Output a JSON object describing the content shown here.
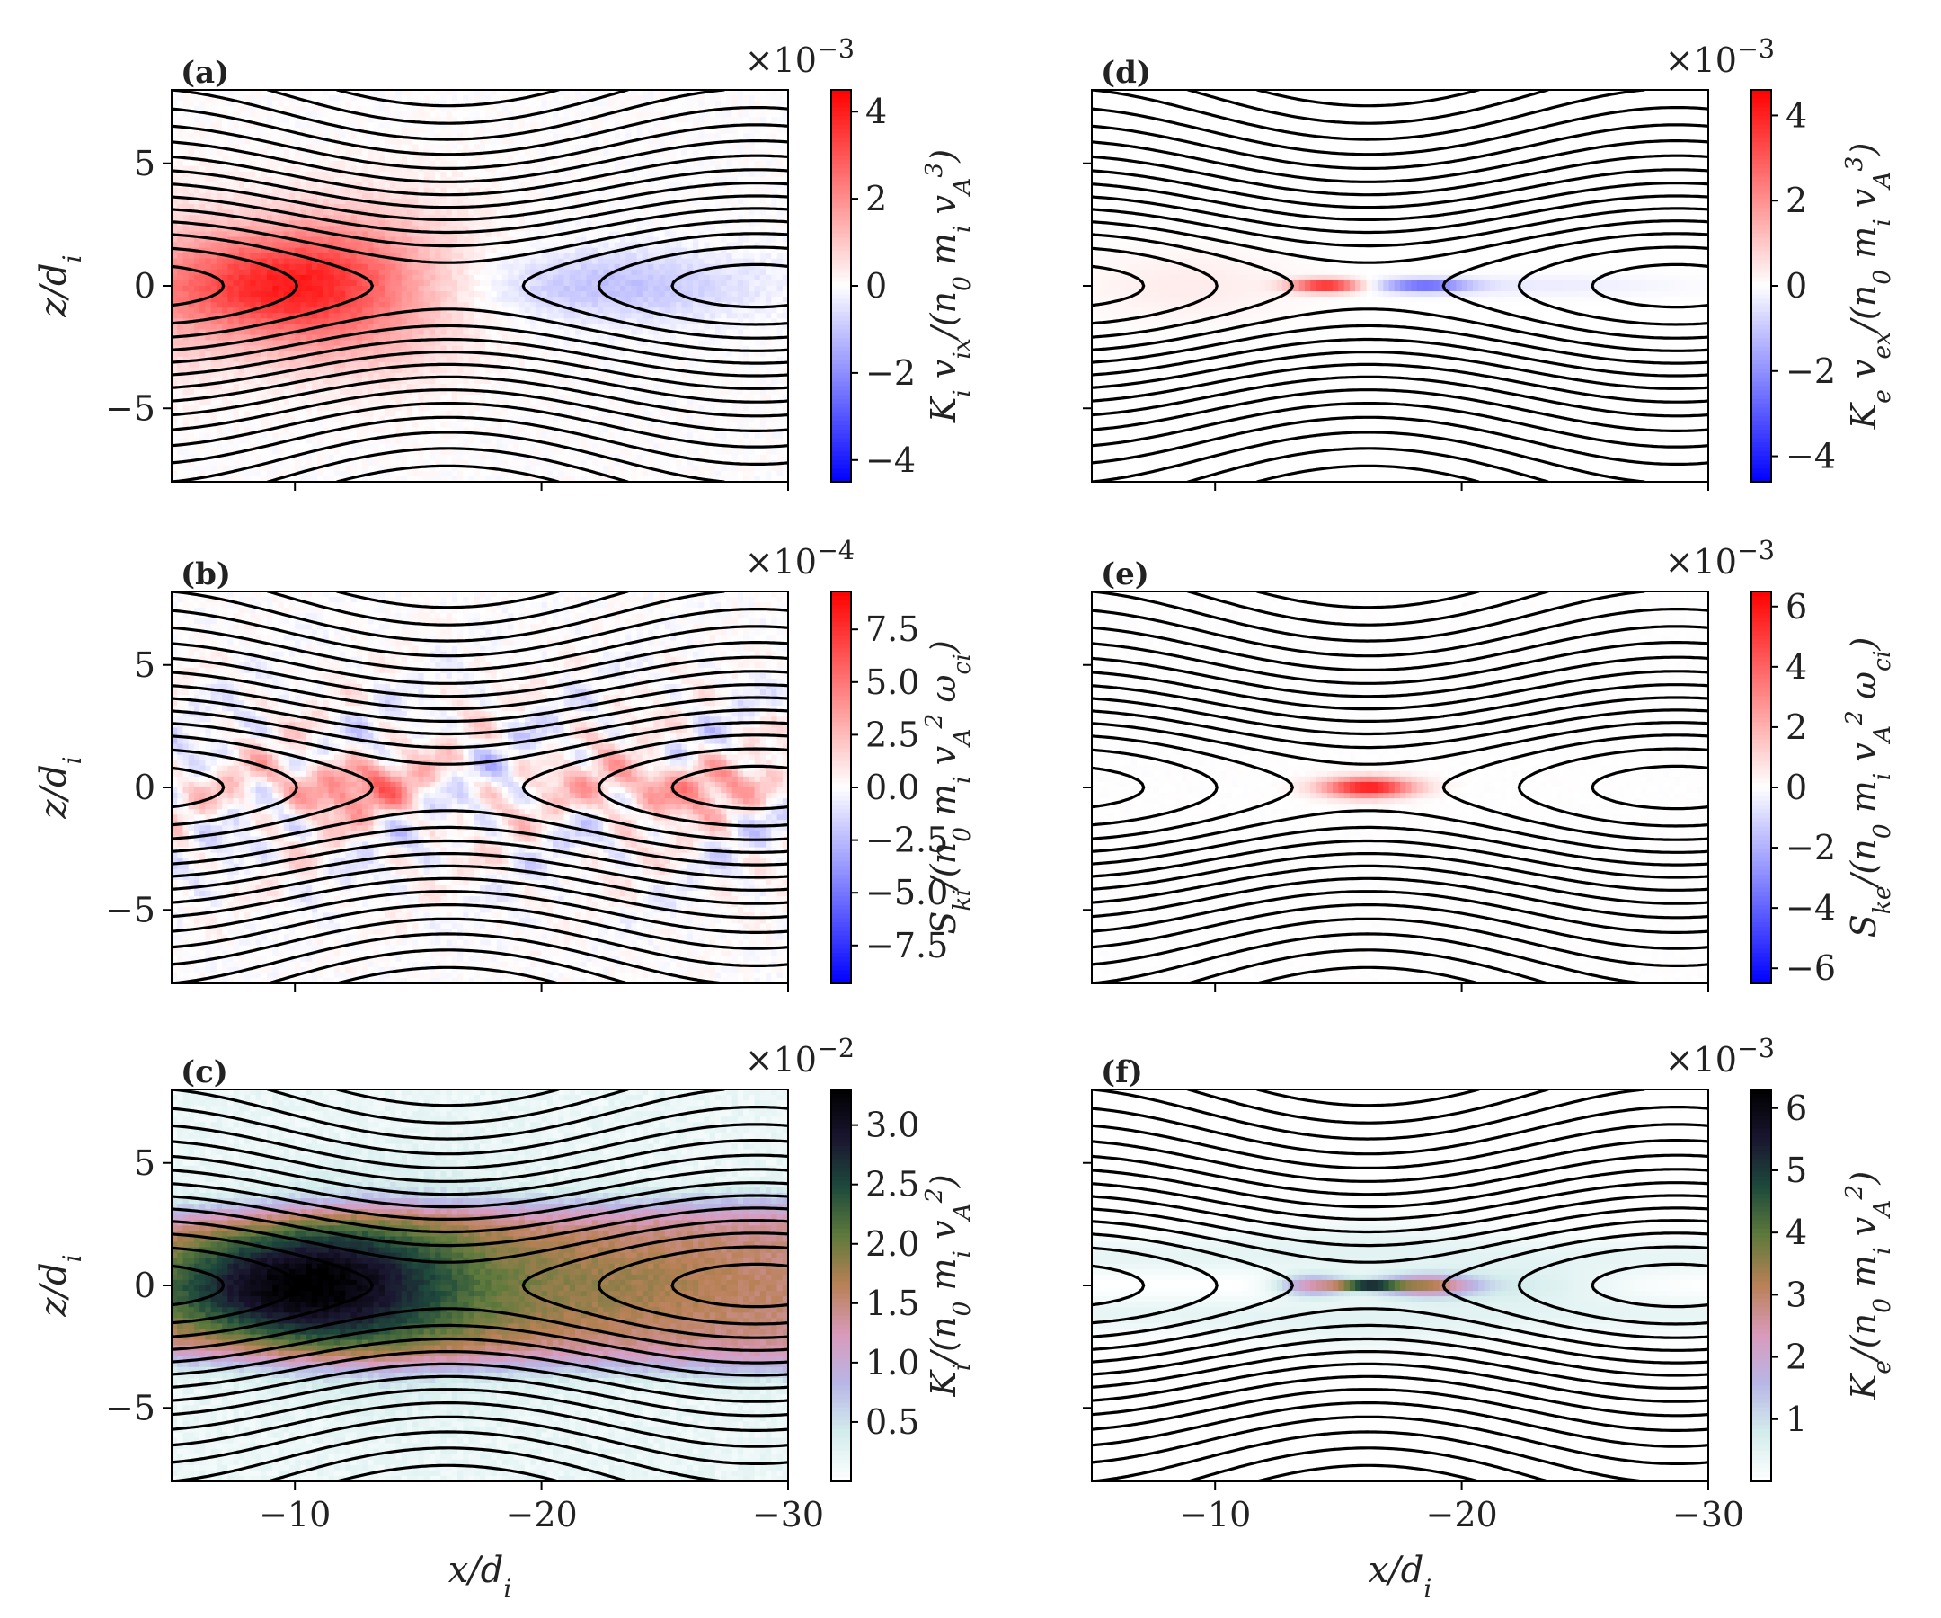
{
  "colors": {
    "pos": "#ff0000",
    "neg": "#0000ff",
    "mid": "#ffffff",
    "lines": "#000000"
  },
  "colormaps": {
    "bwr": [
      "#0000ff",
      "#ffffff",
      "#ff0000"
    ],
    "cubehelix_r": [
      "#ffffff",
      "#d3ecec",
      "#b8b6e6",
      "#d99abb",
      "#b98156",
      "#5f7a3c",
      "#1e4a3c",
      "#1a1530",
      "#000000"
    ]
  },
  "chart_data": [
    {
      "panel": "a",
      "label": "(a)",
      "type": "heatmap",
      "field": "ion_enthalpy_x",
      "colormap": "bwr",
      "xlim": [
        -5,
        -30
      ],
      "ylim": [
        -8,
        8
      ],
      "xticks": [
        -10,
        -20,
        -30
      ],
      "xtick_labels": [
        "−10",
        "−20",
        "−30"
      ],
      "show_xticklabels": false,
      "yticks": [
        5,
        0,
        -5
      ],
      "ytick_labels": [
        "5",
        "0",
        "−5"
      ],
      "show_yticklabels": true,
      "ylabel": "z/d_i",
      "xlabel": "",
      "colorbar": {
        "vmin": -4.5,
        "vmax": 4.5,
        "ticks": [
          4,
          2,
          0,
          -2,
          -4
        ],
        "tick_labels": [
          "4",
          "2",
          "0",
          "−2",
          "−4"
        ],
        "scale": "×10",
        "exponent": "−3",
        "label": "K_i v_ix/(n_0 m_i v_A^3)"
      }
    },
    {
      "panel": "b",
      "label": "(b)",
      "type": "heatmap",
      "field": "ion_source",
      "colormap": "bwr",
      "xlim": [
        -5,
        -30
      ],
      "ylim": [
        -8,
        8
      ],
      "xticks": [
        -10,
        -20,
        -30
      ],
      "xtick_labels": [
        "−10",
        "−20",
        "−30"
      ],
      "show_xticklabels": false,
      "yticks": [
        5,
        0,
        -5
      ],
      "ytick_labels": [
        "5",
        "0",
        "−5"
      ],
      "show_yticklabels": true,
      "ylabel": "z/d_i",
      "xlabel": "",
      "colorbar": {
        "vmin": -9.3,
        "vmax": 9.3,
        "ticks": [
          7.5,
          5.0,
          2.5,
          0.0,
          -2.5,
          -5.0,
          -7.5
        ],
        "tick_labels": [
          "7.5",
          "5.0",
          "2.5",
          "0.0",
          "−2.5",
          "−5.0",
          "−7.5"
        ],
        "scale": "×10",
        "exponent": "−4",
        "label": "S_ki/(n_0 m_i v_A^2 ω_ci)"
      }
    },
    {
      "panel": "c",
      "label": "(c)",
      "type": "heatmap",
      "field": "ion_energy",
      "colormap": "cubehelix_r",
      "xlim": [
        -5,
        -30
      ],
      "ylim": [
        -8,
        8
      ],
      "xticks": [
        -10,
        -20,
        -30
      ],
      "xtick_labels": [
        "−10",
        "−20",
        "−30"
      ],
      "show_xticklabels": true,
      "yticks": [
        5,
        0,
        -5
      ],
      "ytick_labels": [
        "5",
        "0",
        "−5"
      ],
      "show_yticklabels": true,
      "ylabel": "z/d_i",
      "xlabel": "x/d_i",
      "colorbar": {
        "vmin": 0.0,
        "vmax": 3.3,
        "ticks": [
          3.0,
          2.5,
          2.0,
          1.5,
          1.0,
          0.5
        ],
        "tick_labels": [
          "3.0",
          "2.5",
          "2.0",
          "1.5",
          "1.0",
          "0.5"
        ],
        "scale": "×10",
        "exponent": "−2",
        "label": "K_i/(n_0 m_i v_A^2)"
      }
    },
    {
      "panel": "d",
      "label": "(d)",
      "type": "heatmap",
      "field": "electron_enthalpy_x",
      "colormap": "bwr",
      "xlim": [
        -5,
        -30
      ],
      "ylim": [
        -8,
        8
      ],
      "xticks": [
        -10,
        -20,
        -30
      ],
      "xtick_labels": [
        "−10",
        "−20",
        "−30"
      ],
      "show_xticklabels": false,
      "yticks": [
        5,
        0,
        -5
      ],
      "ytick_labels": [
        "5",
        "0",
        "−5"
      ],
      "show_yticklabels": false,
      "ylabel": "",
      "xlabel": "",
      "colorbar": {
        "vmin": -4.6,
        "vmax": 4.6,
        "ticks": [
          4,
          2,
          0,
          -2,
          -4
        ],
        "tick_labels": [
          "4",
          "2",
          "0",
          "−2",
          "−4"
        ],
        "scale": "×10",
        "exponent": "−3",
        "label": "K_e v_ex/(n_0 m_i v_A^3)"
      }
    },
    {
      "panel": "e",
      "label": "(e)",
      "type": "heatmap",
      "field": "electron_source",
      "colormap": "bwr",
      "xlim": [
        -5,
        -30
      ],
      "ylim": [
        -8,
        8
      ],
      "xticks": [
        -10,
        -20,
        -30
      ],
      "xtick_labels": [
        "−10",
        "−20",
        "−30"
      ],
      "show_xticklabels": false,
      "yticks": [
        5,
        0,
        -5
      ],
      "ytick_labels": [
        "5",
        "0",
        "−5"
      ],
      "show_yticklabels": false,
      "ylabel": "",
      "xlabel": "",
      "colorbar": {
        "vmin": -6.5,
        "vmax": 6.5,
        "ticks": [
          6,
          4,
          2,
          0,
          -2,
          -4,
          -6
        ],
        "tick_labels": [
          "6",
          "4",
          "2",
          "0",
          "−2",
          "−4",
          "−6"
        ],
        "scale": "×10",
        "exponent": "−3",
        "label": "S_ke/(n_0 m_i v_A^2 ω_ci)"
      }
    },
    {
      "panel": "f",
      "label": "(f)",
      "type": "heatmap",
      "field": "electron_energy",
      "colormap": "cubehelix_r",
      "xlim": [
        -5,
        -30
      ],
      "ylim": [
        -8,
        8
      ],
      "xticks": [
        -10,
        -20,
        -30
      ],
      "xtick_labels": [
        "−10",
        "−20",
        "−30"
      ],
      "show_xticklabels": true,
      "yticks": [
        5,
        0,
        -5
      ],
      "ytick_labels": [
        "5",
        "0",
        "−5"
      ],
      "show_yticklabels": false,
      "ylabel": "",
      "xlabel": "x/d_i",
      "colorbar": {
        "vmin": 0.0,
        "vmax": 6.3,
        "ticks": [
          6,
          5,
          4,
          3,
          2,
          1
        ],
        "tick_labels": [
          "6",
          "5",
          "4",
          "3",
          "2",
          "1"
        ],
        "scale": "×10",
        "exponent": "−3",
        "label": "K_e/(n_0 m_i v_A^2)"
      }
    }
  ]
}
